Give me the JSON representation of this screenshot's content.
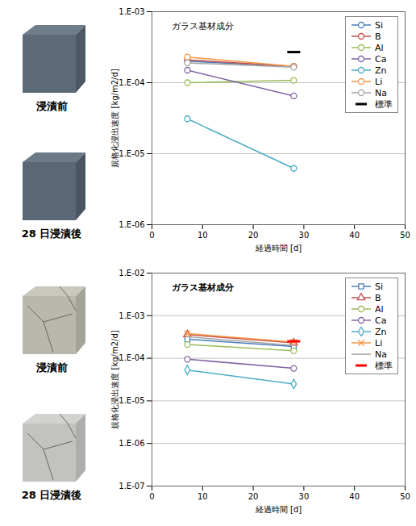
{
  "chart_data": [
    {
      "type": "line",
      "annotations": [
        "ガラス基材成分"
      ],
      "photo_captions": [
        "浸漬前",
        "28 日浸漬後"
      ],
      "x_label": "経過時間 [d]",
      "y_label": "規格化浸出速度 [kg/m2/d]",
      "x": [
        7,
        28
      ],
      "xlim": [
        0,
        50
      ],
      "xticks": [
        0,
        10,
        20,
        30,
        40,
        50
      ],
      "log": "y",
      "ylim": [
        1e-06,
        0.001
      ],
      "yticks": [
        {
          "value": 1e-06,
          "label": "1.E-06"
        },
        {
          "value": 1e-05,
          "label": "1.E-05"
        },
        {
          "value": 0.0001,
          "label": "1.E-04"
        },
        {
          "value": 0.001,
          "label": "1.E-03"
        }
      ],
      "grid": true,
      "legend": "top-right",
      "series": [
        {
          "name": "Si",
          "color": "#4a7ebb",
          "marker": "circle",
          "values": [
            0.0002,
            0.00017
          ]
        },
        {
          "name": "B",
          "color": "#c0504d",
          "marker": "circle",
          "values": [
            0.00021,
            0.00017
          ]
        },
        {
          "name": "Al",
          "color": "#9bbb59",
          "marker": "circle",
          "values": [
            0.0001,
            0.000108
          ]
        },
        {
          "name": "Ca",
          "color": "#8064a2",
          "marker": "circle",
          "values": [
            0.00015,
            6.5e-05
          ]
        },
        {
          "name": "Zn",
          "color": "#4bacc6",
          "marker": "circle",
          "values": [
            3.1e-05,
            6.2e-06
          ]
        },
        {
          "name": "Li",
          "color": "#f79646",
          "marker": "circle",
          "values": [
            0.00023,
            0.00017
          ]
        },
        {
          "name": "Na",
          "color": "#a5a5a5",
          "marker": "circle",
          "values": [
            0.00019,
            0.000165
          ]
        },
        {
          "name": "標準",
          "color": "#000000",
          "type": "dash",
          "values": [
            null,
            0.00027
          ]
        }
      ]
    },
    {
      "type": "line",
      "annotations": [
        "ガラス基材成分"
      ],
      "photo_captions": [
        "浸漬前",
        "28 日浸漬後"
      ],
      "x_label": "経過時間 [d]",
      "y_label": "規格化浸出速度 [kg/m2/d]",
      "x": [
        7,
        28
      ],
      "xlim": [
        0,
        50
      ],
      "xticks": [
        0,
        10,
        20,
        30,
        40,
        50
      ],
      "log": "y",
      "ylim": [
        1e-07,
        0.01
      ],
      "yticks": [
        {
          "value": 1e-07,
          "label": "1.E-07"
        },
        {
          "value": 1e-06,
          "label": "1.E-06"
        },
        {
          "value": 1e-05,
          "label": "1.E-05"
        },
        {
          "value": 0.0001,
          "label": "1.E-04"
        },
        {
          "value": 0.001,
          "label": "1.E-03"
        },
        {
          "value": 0.01,
          "label": "1.E-02"
        }
      ],
      "grid": true,
      "legend": "top-right",
      "series": [
        {
          "name": "Si",
          "color": "#4a7ebb",
          "marker": "square",
          "values": [
            0.00028,
            0.00019
          ]
        },
        {
          "name": "B",
          "color": "#c0504d",
          "marker": "triangle",
          "values": [
            0.00036,
            0.00023
          ]
        },
        {
          "name": "Al",
          "color": "#9bbb59",
          "marker": "circle",
          "values": [
            0.00021,
            0.00015
          ]
        },
        {
          "name": "Ca",
          "color": "#8064a2",
          "marker": "circle",
          "values": [
            9.5e-05,
            5.8e-05
          ]
        },
        {
          "name": "Zn",
          "color": "#4bacc6",
          "marker": "diamond",
          "values": [
            5.3e-05,
            2.5e-05
          ]
        },
        {
          "name": "Li",
          "color": "#f79646",
          "marker": "times",
          "values": [
            0.00038,
            0.00024
          ]
        },
        {
          "name": "Na",
          "color": "#a5a5a5",
          "marker": "none",
          "values": [
            0.00032,
            0.0002
          ]
        },
        {
          "name": "標準",
          "color": "#ff0000",
          "type": "dash",
          "values": [
            null,
            0.00025
          ]
        }
      ]
    }
  ]
}
